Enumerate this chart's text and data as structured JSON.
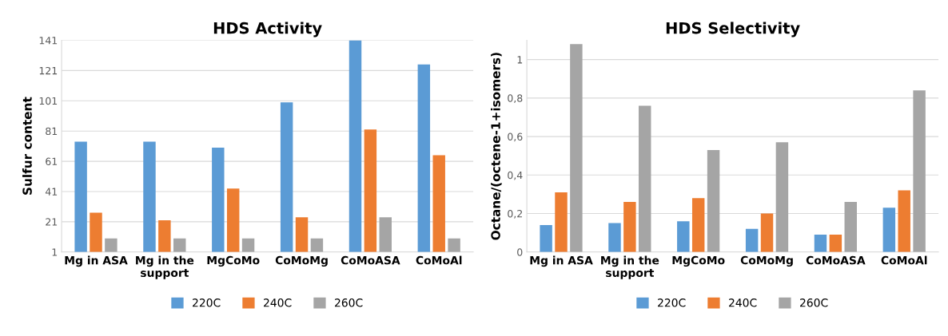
{
  "chart_data": [
    {
      "type": "bar",
      "title": "HDS Activity",
      "ylabel": "Sulfur content",
      "categories": [
        "Mg in ASA",
        "Mg in the\nsupport",
        "MgCoMo",
        "CoMoMg",
        "CoMoASA",
        "CoMoAl"
      ],
      "series": [
        {
          "name": "220C",
          "color": "#5b9bd5",
          "values": [
            74,
            74,
            70,
            100,
            141,
            125
          ]
        },
        {
          "name": "240C",
          "color": "#ed7d31",
          "values": [
            27,
            22,
            43,
            24,
            82,
            65
          ]
        },
        {
          "name": "260C",
          "color": "#a5a5a5",
          "values": [
            10,
            10,
            10,
            10,
            24,
            10
          ]
        }
      ],
      "ylim": [
        1,
        141
      ],
      "yticks": [
        1,
        21,
        41,
        61,
        81,
        101,
        121,
        141
      ],
      "grid": "y",
      "legend": "bottom"
    },
    {
      "type": "bar",
      "title": "HDS Selectivity",
      "ylabel": "Octane/(octene-1+isomers)",
      "categories": [
        "Mg in ASA",
        "Mg in the\nsupport",
        "MgCoMo",
        "CoMoMg",
        "CoMoASA",
        "CoMoAl"
      ],
      "series": [
        {
          "name": "220C",
          "color": "#5b9bd5",
          "values": [
            0.14,
            0.15,
            0.16,
            0.12,
            0.09,
            0.23
          ]
        },
        {
          "name": "240C",
          "color": "#ed7d31",
          "values": [
            0.31,
            0.26,
            0.28,
            0.2,
            0.09,
            0.32
          ]
        },
        {
          "name": "260C",
          "color": "#a5a5a5",
          "values": [
            1.08,
            0.76,
            0.53,
            0.57,
            0.26,
            0.84
          ]
        }
      ],
      "ylim": [
        0,
        1.1
      ],
      "yticks": [
        0,
        {
          "value": 0.2,
          "label": "0,2"
        },
        {
          "value": 0.4,
          "label": "0,4"
        },
        {
          "value": 0.6,
          "label": "0,6"
        },
        {
          "value": 0.8,
          "label": "0,8"
        },
        1
      ],
      "grid": "y",
      "legend": "bottom"
    }
  ]
}
